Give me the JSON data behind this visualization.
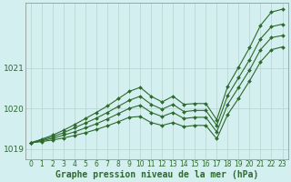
{
  "xlabel": "Graphe pression niveau de la mer (hPa)",
  "bg_color": "#d4efef",
  "grid_color": "#b8d0d0",
  "line_color": "#2d6a2d",
  "x": [
    0,
    1,
    2,
    3,
    4,
    5,
    6,
    7,
    8,
    9,
    10,
    11,
    12,
    13,
    14,
    15,
    16,
    17,
    18,
    19,
    20,
    21,
    22,
    23
  ],
  "series": [
    [
      1019.15,
      1019.18,
      1019.22,
      1019.27,
      1019.33,
      1019.4,
      1019.48,
      1019.57,
      1019.67,
      1019.78,
      1019.8,
      1019.65,
      1019.58,
      1019.65,
      1019.55,
      1019.58,
      1019.58,
      1019.25,
      1019.85,
      1020.25,
      1020.68,
      1021.15,
      1021.45,
      1021.52
    ],
    [
      1019.15,
      1019.2,
      1019.26,
      1019.34,
      1019.42,
      1019.52,
      1019.62,
      1019.74,
      1019.87,
      1020.0,
      1020.08,
      1019.9,
      1019.8,
      1019.9,
      1019.75,
      1019.78,
      1019.78,
      1019.42,
      1020.1,
      1020.52,
      1020.95,
      1021.45,
      1021.75,
      1021.8
    ],
    [
      1019.15,
      1019.22,
      1019.3,
      1019.4,
      1019.52,
      1019.64,
      1019.76,
      1019.9,
      1020.05,
      1020.2,
      1020.3,
      1020.1,
      1019.98,
      1020.1,
      1019.92,
      1019.95,
      1019.95,
      1019.58,
      1020.32,
      1020.76,
      1021.2,
      1021.72,
      1022.02,
      1022.08
    ],
    [
      1019.15,
      1019.24,
      1019.34,
      1019.46,
      1019.6,
      1019.75,
      1019.9,
      1020.06,
      1020.24,
      1020.42,
      1020.52,
      1020.3,
      1020.16,
      1020.3,
      1020.1,
      1020.12,
      1020.12,
      1019.72,
      1020.55,
      1021.02,
      1021.5,
      1022.05,
      1022.38,
      1022.45
    ]
  ],
  "ylim": [
    1018.75,
    1022.6
  ],
  "yticks": [
    1019.0,
    1020.0,
    1021.0
  ],
  "ytick_labels": [
    "1019",
    "1020",
    "1021"
  ],
  "xticks": [
    0,
    1,
    2,
    3,
    4,
    5,
    6,
    7,
    8,
    9,
    10,
    11,
    12,
    13,
    14,
    15,
    16,
    17,
    18,
    19,
    20,
    21,
    22,
    23
  ],
  "marker": "D",
  "markersize": 2.0,
  "linewidth": 0.8,
  "xlabel_fontsize": 7,
  "ytick_fontsize": 6.5,
  "xtick_fontsize": 5.5
}
